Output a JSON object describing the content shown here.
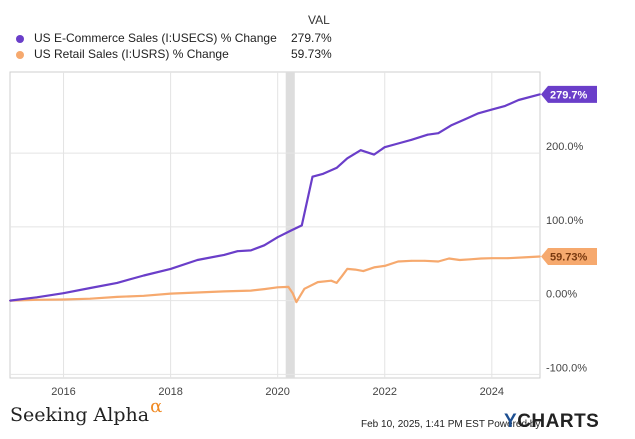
{
  "legend": {
    "header": "VAL",
    "items": [
      {
        "name": "US E-Commerce Sales (I:USECS) % Change",
        "value": "279.7%",
        "color": "#6a3ec9"
      },
      {
        "name": "US Retail Sales (I:USRS) % Change",
        "value": "59.73%",
        "color": "#f6a96e"
      }
    ]
  },
  "footer": {
    "brand": "Seeking Alpha",
    "brand_symbol": "α",
    "credit": "Feb 10, 2025, 1:41 PM EST Powered by",
    "logo_y": "Y",
    "logo_rest": "CHARTS"
  },
  "chart_data": {
    "type": "line",
    "x_label": "",
    "y_label": "",
    "x_range": [
      2015.0,
      2024.9
    ],
    "y_range": [
      -105,
      310
    ],
    "x_ticks": [
      {
        "value": 2016,
        "label": "2016"
      },
      {
        "value": 2018,
        "label": "2018"
      },
      {
        "value": 2020,
        "label": "2020"
      },
      {
        "value": 2022,
        "label": "2022"
      },
      {
        "value": 2024,
        "label": "2024"
      }
    ],
    "y_ticks": [
      {
        "value": 200,
        "label": "200.0%"
      },
      {
        "value": 100,
        "label": "100.0%"
      },
      {
        "value": 0,
        "label": "0.00%"
      },
      {
        "value": -100,
        "label": "-100.0%"
      }
    ],
    "shaded_region": {
      "x0": 2020.15,
      "x1": 2020.32,
      "color": "#dddddd"
    },
    "series": [
      {
        "name": "US E-Commerce Sales (I:USECS) % Change",
        "color": "#6a3ec9",
        "end_label": "279.7%",
        "points": [
          [
            2015.0,
            0
          ],
          [
            2015.5,
            4.5
          ],
          [
            2016.0,
            10
          ],
          [
            2016.5,
            17
          ],
          [
            2017.0,
            24
          ],
          [
            2017.5,
            34
          ],
          [
            2018.0,
            43
          ],
          [
            2018.5,
            55
          ],
          [
            2019.0,
            62
          ],
          [
            2019.25,
            67
          ],
          [
            2019.5,
            68
          ],
          [
            2019.75,
            75
          ],
          [
            2020.0,
            86
          ],
          [
            2020.25,
            95
          ],
          [
            2020.45,
            102
          ],
          [
            2020.65,
            168
          ],
          [
            2020.85,
            172
          ],
          [
            2021.1,
            180
          ],
          [
            2021.3,
            193
          ],
          [
            2021.55,
            204
          ],
          [
            2021.8,
            198
          ],
          [
            2022.0,
            208
          ],
          [
            2022.25,
            213
          ],
          [
            2022.5,
            218
          ],
          [
            2022.8,
            225
          ],
          [
            2023.0,
            227
          ],
          [
            2023.25,
            238
          ],
          [
            2023.5,
            246
          ],
          [
            2023.75,
            254
          ],
          [
            2024.0,
            259
          ],
          [
            2024.25,
            264
          ],
          [
            2024.5,
            272
          ],
          [
            2024.9,
            279.7
          ]
        ]
      },
      {
        "name": "US Retail Sales (I:USRS) % Change",
        "color": "#f6a96e",
        "end_label": "59.73%",
        "points": [
          [
            2015.0,
            0
          ],
          [
            2015.5,
            1
          ],
          [
            2016.0,
            1.5
          ],
          [
            2016.5,
            2.5
          ],
          [
            2017.0,
            5
          ],
          [
            2017.5,
            6.5
          ],
          [
            2018.0,
            9.5
          ],
          [
            2018.5,
            11
          ],
          [
            2019.0,
            12.5
          ],
          [
            2019.5,
            13.5
          ],
          [
            2019.75,
            15.5
          ],
          [
            2020.0,
            18
          ],
          [
            2020.2,
            18.5
          ],
          [
            2020.28,
            10
          ],
          [
            2020.35,
            -2
          ],
          [
            2020.5,
            16
          ],
          [
            2020.75,
            25
          ],
          [
            2021.0,
            27
          ],
          [
            2021.1,
            24
          ],
          [
            2021.2,
            33
          ],
          [
            2021.3,
            43
          ],
          [
            2021.45,
            42
          ],
          [
            2021.6,
            40
          ],
          [
            2021.8,
            45
          ],
          [
            2022.0,
            47
          ],
          [
            2022.25,
            53
          ],
          [
            2022.5,
            54
          ],
          [
            2022.75,
            54
          ],
          [
            2023.0,
            53
          ],
          [
            2023.2,
            57
          ],
          [
            2023.4,
            55
          ],
          [
            2023.6,
            56
          ],
          [
            2023.8,
            57
          ],
          [
            2024.0,
            57.5
          ],
          [
            2024.3,
            57.5
          ],
          [
            2024.6,
            58.5
          ],
          [
            2024.9,
            59.73
          ]
        ]
      }
    ]
  }
}
